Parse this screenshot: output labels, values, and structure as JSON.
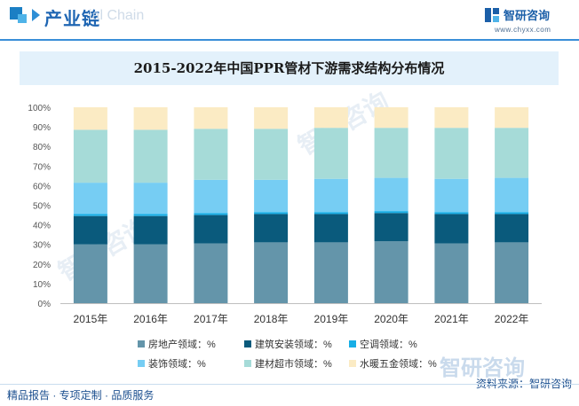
{
  "header": {
    "title": "产业链",
    "watermark": "ial Chain"
  },
  "brand": {
    "name": "智研咨询",
    "url": "www.chyxx.com"
  },
  "watermark_text": "智研咨询",
  "footer": {
    "left": "精品报告 · 专项定制 · 品质服务",
    "source": "资料来源：智研咨询"
  },
  "colors": {
    "accent": "#1f66b3",
    "title_bg": "#e3f1fb"
  },
  "chart_data": {
    "type": "bar",
    "stacked": true,
    "title": "2015-2022年中国PPR管材下游需求结构分布情况",
    "categories": [
      "2015年",
      "2016年",
      "2017年",
      "2018年",
      "2019年",
      "2020年",
      "2021年",
      "2022年"
    ],
    "ylim": [
      0,
      100
    ],
    "yticks": [
      "0%",
      "10%",
      "20%",
      "30%",
      "40%",
      "50%",
      "60%",
      "70%",
      "80%",
      "90%",
      "100%"
    ],
    "grid": false,
    "legend_position": "bottom",
    "series": [
      {
        "name": "房地产领域：%",
        "color": "#6495aa",
        "values": [
          30,
          30,
          30.5,
          31,
          31,
          31.5,
          30.5,
          31
        ]
      },
      {
        "name": "建筑安装领域：%",
        "color": "#0a5a7c",
        "values": [
          14.5,
          14.5,
          14.5,
          14.5,
          14.5,
          14.5,
          15,
          14.5
        ]
      },
      {
        "name": "空调领域：%",
        "color": "#17aee6",
        "values": [
          1,
          1,
          1,
          1,
          1,
          1,
          1,
          1
        ]
      },
      {
        "name": "装饰领域：%",
        "color": "#76cdf3",
        "values": [
          16,
          16,
          17,
          16.5,
          17,
          17,
          17,
          17.5
        ]
      },
      {
        "name": "建材超市领域：%",
        "color": "#a6dbd8",
        "values": [
          27,
          27,
          26,
          26,
          26,
          25.5,
          26,
          25.5
        ]
      },
      {
        "name": "水暖五金领域：%",
        "color": "#fbebc4",
        "values": [
          11.5,
          11.5,
          11,
          11,
          10.5,
          10.5,
          10.5,
          10.5
        ]
      }
    ]
  }
}
